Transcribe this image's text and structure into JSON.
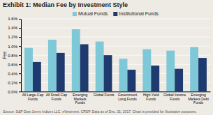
{
  "chart_data": {
    "type": "bar",
    "title": "Exhibit 1: Median Fee by Investment Style",
    "categories": [
      "All Large-Cap\nFunds",
      "All Small-Cap\nFunds",
      "Emerging\nMarkets\nFunds",
      "Global Funds",
      "Government\nLong Funds",
      "High-Yield\nFunds",
      "Global Income\nFunds",
      "Emerging\nMarkets Debt\nFunds"
    ],
    "series": [
      {
        "name": "Mutual Funds",
        "color": "#7EC8D8",
        "values": [
          0.96,
          1.14,
          1.37,
          1.1,
          0.72,
          0.93,
          0.9,
          0.98
        ]
      },
      {
        "name": "Institutional Funds",
        "color": "#1F3A6E",
        "values": [
          0.65,
          0.85,
          1.04,
          0.8,
          0.48,
          0.57,
          0.5,
          0.74
        ]
      }
    ],
    "ylabel": "Fee",
    "ylim": [
      0,
      1.6
    ],
    "yticks": [
      {
        "value": 0.0,
        "label": "0.0%"
      },
      {
        "value": 0.2,
        "label": "0.2%"
      },
      {
        "value": 0.4,
        "label": "0.4%"
      },
      {
        "value": 0.6,
        "label": "0.6%"
      },
      {
        "value": 0.8,
        "label": "0.8%"
      },
      {
        "value": 1.0,
        "label": "1.0%"
      },
      {
        "value": 1.2,
        "label": "1.2%"
      },
      {
        "value": 1.4,
        "label": "1.4%"
      },
      {
        "value": 1.6,
        "label": "1.6%"
      }
    ],
    "grid": true,
    "legend": "top",
    "annotations": [
      "Source: S&P Dow Jones Indices LLC, eVestment, CRSP. Data as of Dec. 31, 2017. Chart is provided for illustrative purposes."
    ]
  }
}
